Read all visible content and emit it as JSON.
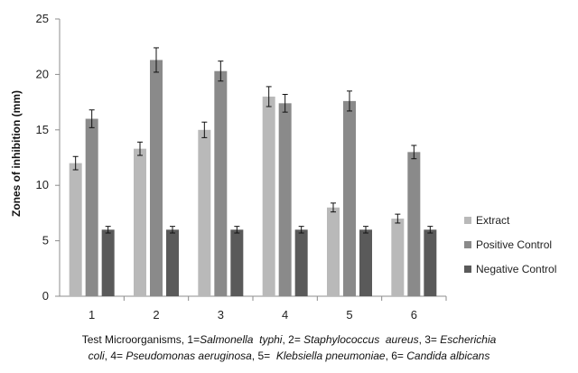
{
  "chart_data": {
    "type": "bar",
    "ylabel": "Zones of inhibition  (mm)",
    "ylim": [
      0,
      25
    ],
    "yticks": [
      0,
      5,
      10,
      15,
      20,
      25
    ],
    "categories": [
      "1",
      "2",
      "3",
      "4",
      "5",
      "6"
    ],
    "error_bars": true,
    "grid": false,
    "legend_position": "right",
    "series": [
      {
        "name": "Extract",
        "color": "#b9b9b9",
        "values": [
          12,
          13.3,
          15,
          18,
          8,
          7
        ],
        "errors": [
          0.6,
          0.6,
          0.7,
          0.9,
          0.4,
          0.4
        ]
      },
      {
        "name": "Positive Control",
        "color": "#8a8a8a",
        "values": [
          16,
          21.3,
          20.3,
          17.4,
          17.6,
          13
        ],
        "errors": [
          0.8,
          1.1,
          0.9,
          0.8,
          0.9,
          0.6
        ]
      },
      {
        "name": "Negative Control",
        "color": "#5a5a5a",
        "values": [
          6,
          6,
          6,
          6,
          6,
          6
        ],
        "errors": [
          0.3,
          0.3,
          0.3,
          0.3,
          0.3,
          0.3
        ]
      }
    ]
  },
  "caption": {
    "line1_parts": [
      {
        "text": "Test Microorganisms, 1=",
        "italic": false
      },
      {
        "text": "Salmonella  typhi",
        "italic": true
      },
      {
        "text": ", 2= ",
        "italic": false
      },
      {
        "text": "Staphylococcus  aureus",
        "italic": true
      },
      {
        "text": ", 3= ",
        "italic": false
      },
      {
        "text": "Escherichia",
        "italic": true
      }
    ],
    "line2_parts": [
      {
        "text": "coli",
        "italic": true
      },
      {
        "text": ", 4= ",
        "italic": false
      },
      {
        "text": "Pseudomonas aeruginosa",
        "italic": true
      },
      {
        "text": ", 5=  ",
        "italic": false
      },
      {
        "text": "Klebsiella pneumoniae",
        "italic": true
      },
      {
        "text": ", 6= ",
        "italic": false
      },
      {
        "text": "Candida albicans",
        "italic": true
      }
    ]
  }
}
